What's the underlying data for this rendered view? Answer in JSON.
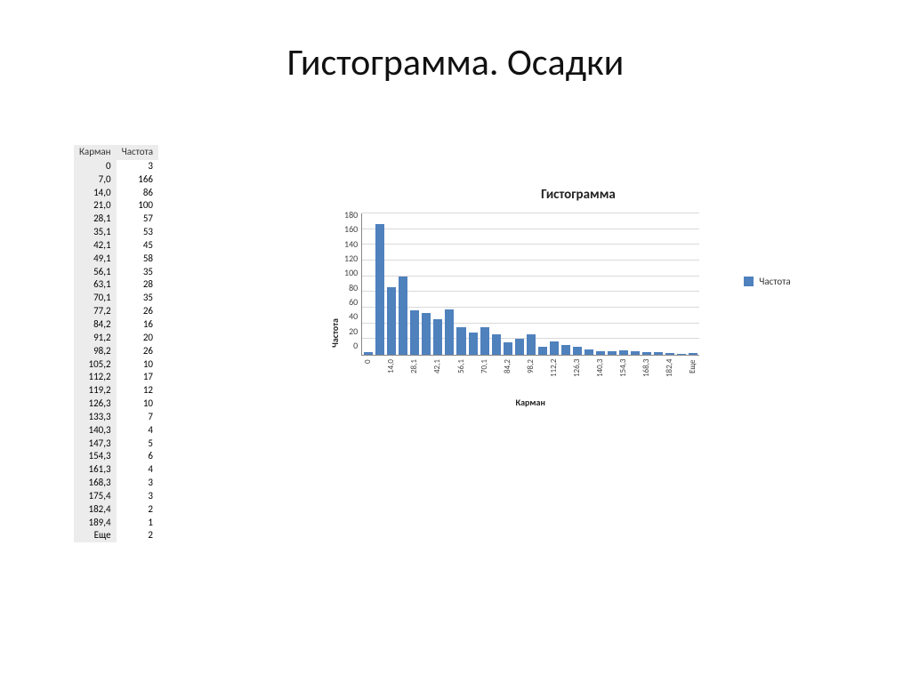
{
  "title": "Гистограмма. Осадки",
  "table": {
    "headers": [
      "Карман",
      "Частота"
    ],
    "header_bg": "#ececec",
    "bin_bg": "#ececec",
    "rows": [
      [
        "0",
        "3"
      ],
      [
        "7,0",
        "166"
      ],
      [
        "14,0",
        "86"
      ],
      [
        "21,0",
        "100"
      ],
      [
        "28,1",
        "57"
      ],
      [
        "35,1",
        "53"
      ],
      [
        "42,1",
        "45"
      ],
      [
        "49,1",
        "58"
      ],
      [
        "56,1",
        "35"
      ],
      [
        "63,1",
        "28"
      ],
      [
        "70,1",
        "35"
      ],
      [
        "77,2",
        "26"
      ],
      [
        "84,2",
        "16"
      ],
      [
        "91,2",
        "20"
      ],
      [
        "98,2",
        "26"
      ],
      [
        "105,2",
        "10"
      ],
      [
        "112,2",
        "17"
      ],
      [
        "119,2",
        "12"
      ],
      [
        "126,3",
        "10"
      ],
      [
        "133,3",
        "7"
      ],
      [
        "140,3",
        "4"
      ],
      [
        "147,3",
        "5"
      ],
      [
        "154,3",
        "6"
      ],
      [
        "161,3",
        "4"
      ],
      [
        "168,3",
        "3"
      ],
      [
        "175,4",
        "3"
      ],
      [
        "182,4",
        "2"
      ],
      [
        "189,4",
        "1"
      ],
      [
        "Еще",
        "2"
      ]
    ]
  },
  "chart": {
    "type": "bar",
    "title": "Гистограмма",
    "title_fontsize": 15,
    "xaxis_label": "Карман",
    "yaxis_label": "Частота",
    "label_fontsize": 10,
    "ylim": [
      0,
      180
    ],
    "ytick_step": 20,
    "yticks": [
      "180",
      "160",
      "140",
      "120",
      "100",
      "80",
      "60",
      "40",
      "20",
      "0"
    ],
    "bar_color": "#4f81bd",
    "grid_color": "#d9d9d9",
    "axis_color": "#888888",
    "background_color": "#ffffff",
    "legend_label": "Частота",
    "xtick_every": 2,
    "categories": [
      "0",
      "7,0",
      "14,0",
      "21,0",
      "28,1",
      "35,1",
      "42,1",
      "49,1",
      "56,1",
      "63,1",
      "70,1",
      "77,2",
      "84,2",
      "91,2",
      "98,2",
      "105,2",
      "112,2",
      "119,2",
      "126,3",
      "133,3",
      "140,3",
      "147,3",
      "154,3",
      "161,3",
      "168,3",
      "175,4",
      "182,4",
      "189,4",
      "Еще"
    ],
    "values": [
      3,
      166,
      86,
      100,
      57,
      53,
      45,
      58,
      35,
      28,
      35,
      26,
      16,
      20,
      26,
      10,
      17,
      12,
      10,
      7,
      4,
      5,
      6,
      4,
      3,
      3,
      2,
      1,
      2
    ]
  }
}
